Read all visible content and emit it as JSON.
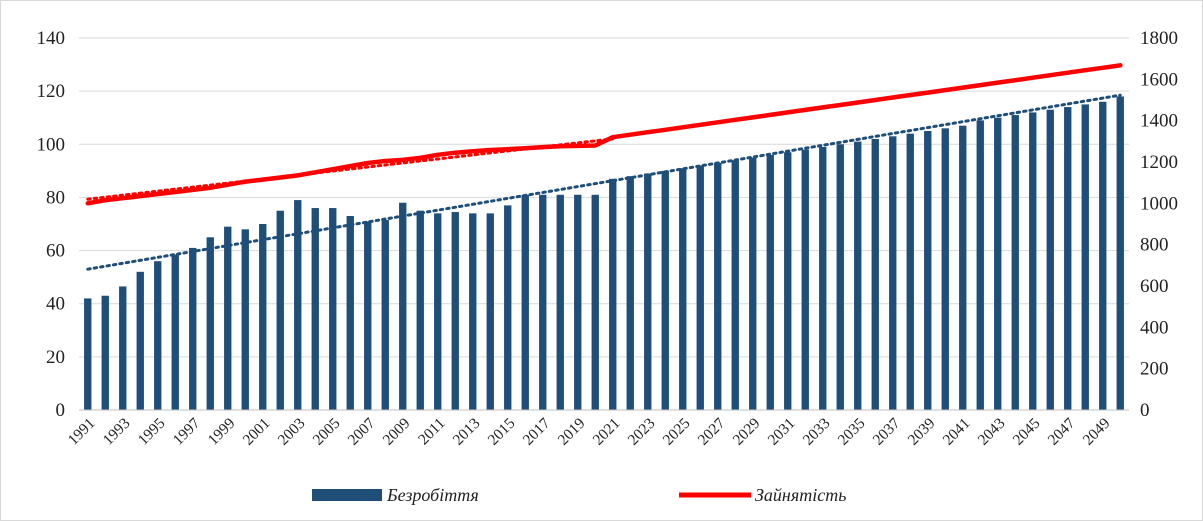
{
  "chart_data": {
    "type": "bar",
    "x": [
      1991,
      1992,
      1993,
      1994,
      1995,
      1996,
      1997,
      1998,
      1999,
      2000,
      2001,
      2002,
      2003,
      2004,
      2005,
      2006,
      2007,
      2008,
      2009,
      2010,
      2011,
      2012,
      2013,
      2014,
      2015,
      2016,
      2017,
      2018,
      2019,
      2020,
      2021,
      2022,
      2023,
      2024,
      2025,
      2026,
      2027,
      2028,
      2029,
      2030,
      2031,
      2032,
      2033,
      2034,
      2035,
      2036,
      2037,
      2038,
      2039,
      2040,
      2041,
      2042,
      2043,
      2044,
      2045,
      2046,
      2047,
      2048,
      2049,
      2050
    ],
    "x_tick_labels": [
      "1991",
      "1993",
      "1995",
      "1997",
      "1999",
      "2001",
      "2003",
      "2005",
      "2007",
      "2009",
      "2011",
      "2013",
      "2015",
      "2017",
      "2019",
      "2021",
      "2023",
      "2025",
      "2027",
      "2029",
      "2031",
      "2033",
      "2035",
      "2037",
      "2039",
      "2041",
      "2043",
      "2045",
      "2047",
      "2049"
    ],
    "y_left": {
      "ylim": [
        0,
        140
      ],
      "ticks": [
        0,
        20,
        40,
        60,
        80,
        100,
        120,
        140
      ]
    },
    "y_right": {
      "ylim": [
        0,
        1800
      ],
      "ticks": [
        0,
        200,
        400,
        600,
        800,
        1000,
        1200,
        1400,
        1600,
        1800
      ]
    },
    "series": [
      {
        "name": "Безробіття",
        "kind": "bar",
        "axis": "left",
        "color": "#1f4e79",
        "values": [
          42,
          43,
          46.5,
          52,
          56,
          58.5,
          61,
          65,
          69,
          68,
          70,
          75,
          79,
          76,
          76,
          73,
          71,
          71.5,
          78,
          75,
          74,
          74.5,
          74,
          74,
          77,
          81,
          81,
          81,
          81,
          81,
          87,
          88,
          89,
          90,
          91,
          92,
          93,
          94,
          95,
          96,
          97,
          98,
          99,
          100,
          101,
          102,
          103,
          104,
          105,
          106,
          107,
          109,
          110,
          111,
          112,
          113,
          114,
          115,
          116,
          118
        ]
      },
      {
        "name": "Зайнятість",
        "kind": "line",
        "axis": "right",
        "color": "#ff0000",
        "values": [
          1000,
          1015,
          1025,
          1035,
          1045,
          1055,
          1065,
          1075,
          1090,
          1105,
          1115,
          1125,
          1135,
          1150,
          1165,
          1180,
          1195,
          1205,
          1210,
          1220,
          1235,
          1245,
          1252,
          1258,
          1262,
          1267,
          1272,
          1276,
          1278,
          1280,
          1320,
          1332,
          1344,
          1356,
          1368,
          1380,
          1392,
          1404,
          1416,
          1428,
          1440,
          1452,
          1464,
          1476,
          1488,
          1500,
          1512,
          1524,
          1536,
          1548,
          1560,
          1572,
          1584,
          1596,
          1608,
          1620,
          1632,
          1644,
          1656,
          1668
        ]
      }
    ],
    "trendlines": [
      {
        "of": "Безробіття",
        "axis": "left",
        "style": "dotted",
        "color": "#1f4e79",
        "start": 53,
        "end": 118.5
      },
      {
        "of": "Зайнятість",
        "axis": "right",
        "style": "dotted",
        "color": "#ff0000",
        "from_year": 1991,
        "to_year": 2021,
        "start": 1020,
        "end": 1312
      }
    ],
    "legend_position": "bottom",
    "grid": "horizontal"
  }
}
